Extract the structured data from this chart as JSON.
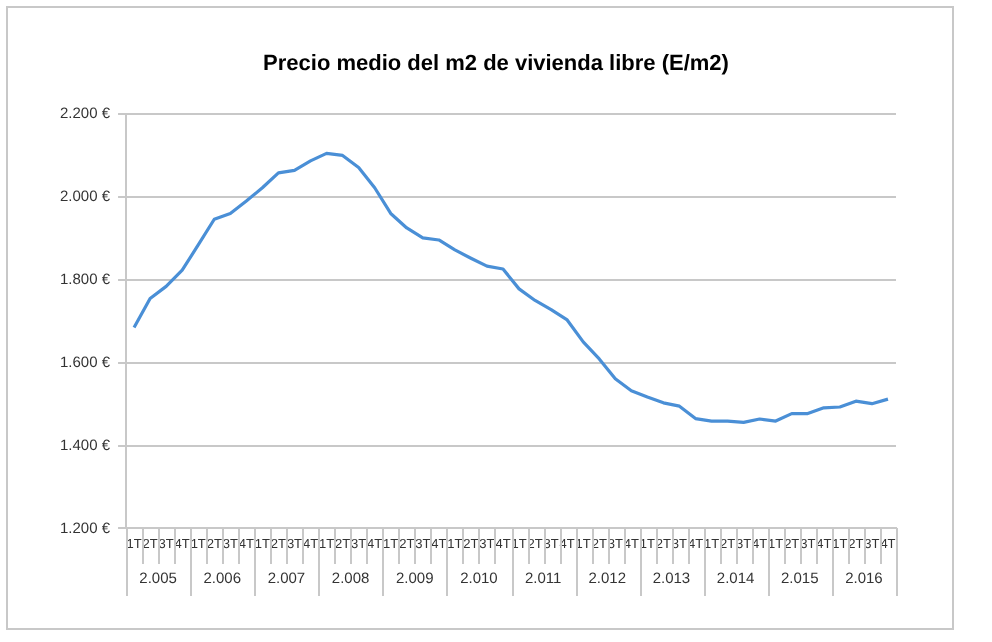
{
  "chart_data": {
    "type": "line",
    "title": "Precio medio del m2 de vivienda libre (E/m2)",
    "categories": [
      "1T",
      "2T",
      "3T",
      "4T",
      "1T",
      "2T",
      "3T",
      "4T",
      "1T",
      "2T",
      "3T",
      "4T",
      "1T",
      "2T",
      "3T",
      "4T",
      "1T",
      "2T",
      "3T",
      "4T",
      "1T",
      "2T",
      "3T",
      "4T",
      "1T",
      "2T",
      "3T",
      "4T",
      "1T",
      "2T",
      "3T",
      "4T",
      "1T",
      "2T",
      "3T",
      "4T",
      "1T",
      "2T",
      "3T",
      "4T",
      "1T",
      "2T",
      "3T",
      "4T",
      "1T",
      "2T",
      "3T",
      "4T"
    ],
    "values": [
      1685,
      1755,
      1784,
      1823,
      1884,
      1946,
      1960,
      1990,
      2022,
      2058,
      2064,
      2087,
      2105,
      2100,
      2071,
      2022,
      1960,
      1925,
      1901,
      1896,
      1872,
      1852,
      1833,
      1826,
      1778,
      1750,
      1728,
      1703,
      1650,
      1609,
      1561,
      1532,
      1517,
      1503,
      1495,
      1465,
      1459,
      1459,
      1456,
      1464,
      1459,
      1477,
      1477,
      1491,
      1493,
      1507,
      1501,
      1512
    ],
    "color": "#4a8fd6",
    "ylim": [
      1200,
      2200
    ],
    "yticks": [
      {
        "value": 1200,
        "label": "1.200 €"
      },
      {
        "value": 1400,
        "label": "1.400 €"
      },
      {
        "value": 1600,
        "label": "1.600 €"
      },
      {
        "value": 1800,
        "label": "1.800 €"
      },
      {
        "value": 2000,
        "label": "2.000 €"
      },
      {
        "value": 2200,
        "label": "2.200 €"
      }
    ],
    "grid": "y",
    "legend": false,
    "marker": "none",
    "line_style": "solid",
    "annotations": [
      "2.005",
      "2.006",
      "2.007",
      "2.008",
      "2.009",
      "2.010",
      "2.011",
      "2.012",
      "2.013",
      "2.014",
      "2.015",
      "2.016"
    ]
  }
}
